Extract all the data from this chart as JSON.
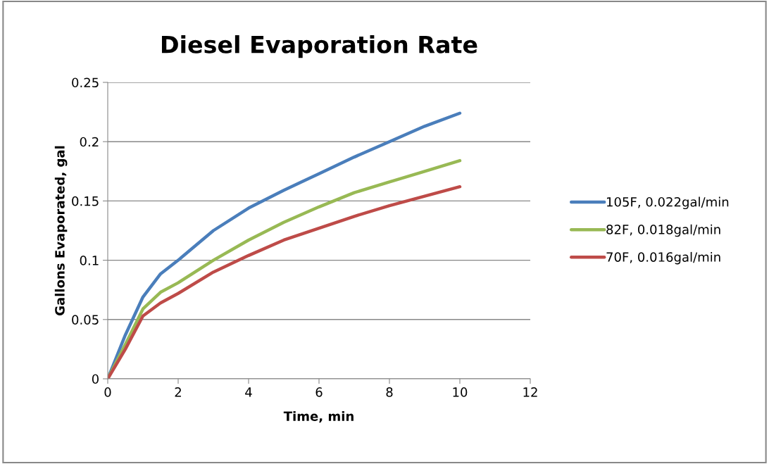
{
  "chart_data": {
    "type": "line",
    "title": "Diesel Evaporation Rate",
    "xlabel": "Time, min",
    "ylabel": "Gallons Evaporated, gal",
    "x": [
      0,
      0.5,
      1,
      1.5,
      2,
      3,
      4,
      5,
      6,
      7,
      8,
      9,
      10
    ],
    "series": [
      {
        "name": "105F, 0.022gal/min",
        "color": "#4a7ebb",
        "values": [
          0,
          0.037,
          0.069,
          0.0885,
          0.1,
          0.125,
          0.144,
          0.159,
          0.173,
          0.187,
          0.2,
          0.213,
          0.224
        ]
      },
      {
        "name": "82F, 0.018gal/min",
        "color": "#98b954",
        "values": [
          0,
          0.029,
          0.059,
          0.073,
          0.081,
          0.1,
          0.117,
          0.132,
          0.145,
          0.157,
          0.166,
          0.175,
          0.184
        ]
      },
      {
        "name": "70F, 0.016gal/min",
        "color": "#be4b48",
        "values": [
          0,
          0.025,
          0.053,
          0.064,
          0.072,
          0.09,
          0.104,
          0.117,
          0.127,
          0.137,
          0.146,
          0.154,
          0.162
        ]
      }
    ],
    "xlim": [
      0,
      12
    ],
    "xticks": [
      0,
      2,
      4,
      6,
      8,
      10,
      12
    ],
    "ylim": [
      0,
      0.25
    ],
    "yticks": [
      {
        "value": 0,
        "label": "0"
      },
      0.05,
      0.1,
      0.15,
      0.2,
      0.25
    ],
    "grid": "y",
    "legend": "right",
    "marker": "none",
    "line_style": "solid"
  }
}
